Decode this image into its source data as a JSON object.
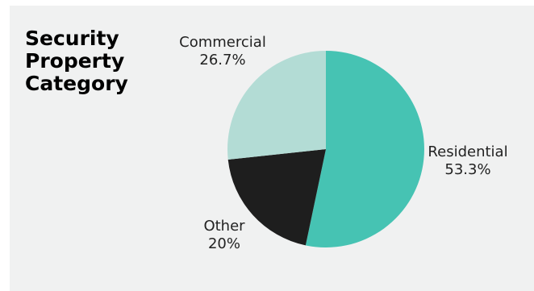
{
  "title_lines": [
    "Security",
    "Property",
    "Category"
  ],
  "chart_data": {
    "type": "pie",
    "title": "Security Property Category",
    "start_angle_deg": 0,
    "direction": "clockwise",
    "slices": [
      {
        "label": "Residential",
        "value": 53.3,
        "display_value": "53.3%",
        "color": "#46c3b3",
        "label_side": "right"
      },
      {
        "label": "Other",
        "value": 20.0,
        "display_value": "20%",
        "color": "#1e1e1e",
        "label_side": "bottom-left"
      },
      {
        "label": "Commercial",
        "value": 26.7,
        "display_value": "26.7%",
        "color": "#b3dcd5",
        "label_side": "top-left"
      }
    ]
  },
  "colors": {
    "background": "#f0f1f1",
    "text": "#222222"
  }
}
